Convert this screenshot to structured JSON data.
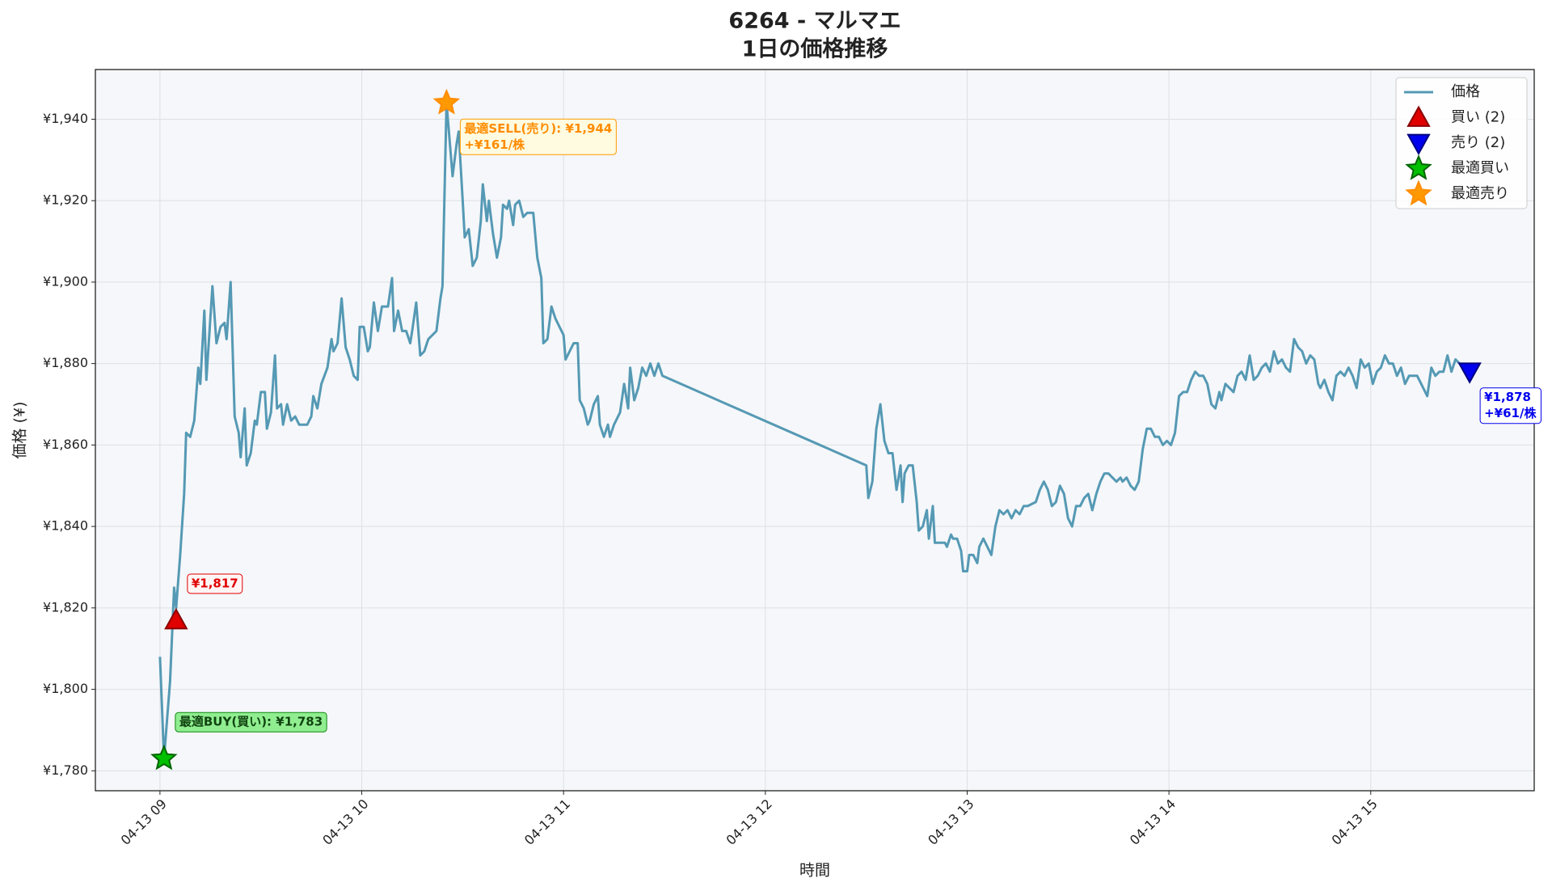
{
  "chart_data": {
    "type": "line",
    "title": "6264 - マルマエ",
    "subtitle": "1日の価格推移",
    "xlabel": "時間",
    "ylabel": "価格 (¥)",
    "xlim": [
      8.68,
      15.81
    ],
    "ylim": [
      1775.1,
      1952.2
    ],
    "xticks": [
      {
        "value": 9,
        "label": "04-13 09"
      },
      {
        "value": 10,
        "label": "04-13 10"
      },
      {
        "value": 11,
        "label": "04-13 11"
      },
      {
        "value": 12,
        "label": "04-13 12"
      },
      {
        "value": 13,
        "label": "04-13 13"
      },
      {
        "value": 14,
        "label": "04-13 14"
      },
      {
        "value": 15,
        "label": "04-13 15"
      }
    ],
    "yticks": [
      {
        "value": 1780,
        "label": "¥1,780"
      },
      {
        "value": 1800,
        "label": "¥1,800"
      },
      {
        "value": 1820,
        "label": "¥1,820"
      },
      {
        "value": 1840,
        "label": "¥1,840"
      },
      {
        "value": 1860,
        "label": "¥1,860"
      },
      {
        "value": 1880,
        "label": "¥1,880"
      },
      {
        "value": 1900,
        "label": "¥1,900"
      },
      {
        "value": 1920,
        "label": "¥1,920"
      },
      {
        "value": 1940,
        "label": "¥1,940"
      }
    ],
    "grid": true,
    "legend": "upper right",
    "series": [
      {
        "name": "価格",
        "color": "#5599b4",
        "x": [
          9.0,
          9.02,
          9.05,
          9.07,
          9.08,
          9.1,
          9.12,
          9.13,
          9.15,
          9.17,
          9.19,
          9.2,
          9.22,
          9.23,
          9.26,
          9.28,
          9.3,
          9.32,
          9.33,
          9.35,
          9.37,
          9.39,
          9.4,
          9.42,
          9.43,
          9.45,
          9.47,
          9.48,
          9.5,
          9.52,
          9.53,
          9.55,
          9.57,
          9.58,
          9.6,
          9.61,
          9.63,
          9.65,
          9.67,
          9.69,
          9.73,
          9.75,
          9.76,
          9.78,
          9.8,
          9.83,
          9.85,
          9.86,
          9.88,
          9.9,
          9.92,
          9.94,
          9.96,
          9.98,
          9.99,
          10.01,
          10.03,
          10.04,
          10.06,
          10.08,
          10.1,
          10.13,
          10.15,
          10.16,
          10.18,
          10.2,
          10.22,
          10.24,
          10.25,
          10.27,
          10.29,
          10.31,
          10.33,
          10.35,
          10.37,
          10.39,
          10.4,
          10.42,
          10.45,
          10.47,
          10.48,
          10.5,
          10.51,
          10.53,
          10.55,
          10.57,
          10.59,
          10.6,
          10.62,
          10.63,
          10.65,
          10.67,
          10.69,
          10.7,
          10.72,
          10.73,
          10.75,
          10.76,
          10.78,
          10.8,
          10.82,
          10.85,
          10.87,
          10.89,
          10.9,
          10.92,
          10.94,
          10.96,
          10.98,
          11.0,
          11.01,
          11.03,
          11.05,
          11.07,
          11.08,
          11.1,
          11.12,
          11.13,
          11.15,
          11.17,
          11.18,
          11.2,
          11.22,
          11.23,
          11.25,
          11.27,
          11.28,
          11.3,
          11.32,
          11.33,
          11.35,
          11.37,
          11.39,
          11.41,
          11.43,
          11.45,
          11.47,
          11.49,
          12.5,
          12.51,
          12.53,
          12.55,
          12.57,
          12.59,
          12.61,
          12.63,
          12.65,
          12.67,
          12.68,
          12.69,
          12.71,
          12.73,
          12.75,
          12.76,
          12.78,
          12.8,
          12.81,
          12.83,
          12.84,
          12.87,
          12.89,
          12.9,
          12.92,
          12.93,
          12.95,
          12.97,
          12.98,
          13.0,
          13.01,
          13.03,
          13.05,
          13.06,
          13.08,
          13.1,
          13.12,
          13.14,
          13.16,
          13.18,
          13.2,
          13.22,
          13.24,
          13.26,
          13.28,
          13.3,
          13.34,
          13.36,
          13.38,
          13.4,
          13.42,
          13.44,
          13.46,
          13.48,
          13.5,
          13.52,
          13.54,
          13.56,
          13.58,
          13.6,
          13.62,
          13.64,
          13.66,
          13.68,
          13.7,
          13.72,
          13.74,
          13.76,
          13.77,
          13.79,
          13.81,
          13.83,
          13.85,
          13.87,
          13.89,
          13.91,
          13.93,
          13.95,
          13.97,
          13.99,
          14.01,
          14.03,
          14.05,
          14.07,
          14.09,
          14.11,
          14.13,
          14.15,
          14.17,
          14.19,
          14.21,
          14.23,
          14.25,
          14.26,
          14.28,
          14.3,
          14.32,
          14.34,
          14.36,
          14.38,
          14.4,
          14.42,
          14.44,
          14.46,
          14.48,
          14.5,
          14.52,
          14.54,
          14.56,
          14.58,
          14.6,
          14.62,
          14.64,
          14.66,
          14.68,
          14.7,
          14.72,
          14.74,
          14.75,
          14.77,
          14.79,
          14.81,
          14.83,
          14.85,
          14.87,
          14.89,
          14.91,
          14.93,
          14.95,
          14.97,
          14.99,
          15.01,
          15.03,
          15.05,
          15.07,
          15.09,
          15.11,
          15.13,
          15.15,
          15.17,
          15.19,
          15.21,
          15.23,
          15.25,
          15.26,
          15.28,
          15.3,
          15.32,
          15.34,
          15.36,
          15.38,
          15.4,
          15.42,
          15.44
        ],
        "values": [
          1808,
          1783,
          1802,
          1825,
          1820,
          1833,
          1848,
          1863,
          1862,
          1866,
          1879,
          1875,
          1893,
          1876,
          1899,
          1885,
          1889,
          1890,
          1886,
          1900,
          1867,
          1863,
          1857,
          1869,
          1855,
          1858,
          1866,
          1865,
          1873,
          1873,
          1864,
          1868,
          1882,
          1869,
          1870,
          1865,
          1870,
          1866,
          1867,
          1865,
          1865,
          1867,
          1872,
          1869,
          1875,
          1879,
          1886,
          1883,
          1885,
          1896,
          1884,
          1881,
          1877,
          1876,
          1889,
          1889,
          1883,
          1884,
          1895,
          1888,
          1894,
          1894,
          1901,
          1888,
          1893,
          1888,
          1888,
          1885,
          1888,
          1895,
          1882,
          1883,
          1886,
          1887,
          1888,
          1896,
          1899,
          1944,
          1926,
          1934,
          1937,
          1920,
          1911,
          1913,
          1904,
          1906,
          1915,
          1924,
          1915,
          1920,
          1912,
          1906,
          1911,
          1919,
          1918,
          1920,
          1914,
          1919,
          1920,
          1916,
          1917,
          1917,
          1906,
          1901,
          1885,
          1886,
          1894,
          1891,
          1889,
          1887,
          1881,
          1883,
          1885,
          1885,
          1871,
          1869,
          1865,
          1866,
          1870,
          1872,
          1865,
          1862,
          1865,
          1862,
          1865,
          1867,
          1868,
          1875,
          1869,
          1879,
          1871,
          1874,
          1879,
          1877,
          1880,
          1877,
          1880,
          1877,
          1855,
          1847,
          1851,
          1864,
          1870,
          1861,
          1858,
          1858,
          1849,
          1855,
          1846,
          1853,
          1855,
          1855,
          1846,
          1839,
          1840,
          1844,
          1837,
          1845,
          1836,
          1836,
          1836,
          1835,
          1838,
          1837,
          1837,
          1834,
          1829,
          1829,
          1833,
          1833,
          1831,
          1835,
          1837,
          1835,
          1833,
          1840,
          1844,
          1843,
          1844,
          1842,
          1844,
          1843,
          1845,
          1845,
          1846,
          1849,
          1851,
          1849,
          1845,
          1846,
          1850,
          1848,
          1842,
          1840,
          1845,
          1845,
          1847,
          1848,
          1844,
          1848,
          1851,
          1853,
          1853,
          1852,
          1851,
          1852,
          1851,
          1852,
          1850,
          1849,
          1851,
          1859,
          1864,
          1864,
          1862,
          1862,
          1860,
          1861,
          1860,
          1863,
          1872,
          1873,
          1873,
          1876,
          1878,
          1877,
          1877,
          1875,
          1870,
          1869,
          1873,
          1871,
          1875,
          1874,
          1873,
          1877,
          1878,
          1876,
          1882,
          1876,
          1877,
          1879,
          1880,
          1878,
          1883,
          1880,
          1881,
          1879,
          1878,
          1886,
          1884,
          1883,
          1880,
          1882,
          1881,
          1875,
          1874,
          1876,
          1873,
          1871,
          1877,
          1878,
          1877,
          1879,
          1877,
          1874,
          1881,
          1879,
          1880,
          1875,
          1878,
          1879,
          1882,
          1880,
          1880,
          1877,
          1879,
          1875,
          1877,
          1877,
          1877,
          1875,
          1874,
          1872,
          1879,
          1877,
          1878,
          1878,
          1882,
          1878,
          1881,
          1880
        ]
      }
    ],
    "markers": [
      {
        "name": "買い (2)",
        "shape": "triangle-up",
        "color": "#e00000",
        "x": [
          9.08
        ],
        "values": [
          1817
        ],
        "value_labels": [
          "¥1,817"
        ]
      },
      {
        "name": "売り (2)",
        "shape": "triangle-down",
        "color": "#0000ee",
        "x": [
          15.49
        ],
        "values": [
          1878
        ],
        "value_labels": [
          "¥1,878"
        ],
        "annotations": [
          "+¥61/株"
        ]
      },
      {
        "name": "最適買い",
        "shape": "star",
        "color": "#00c000",
        "x": [
          9.02
        ],
        "values": [
          1783
        ],
        "value_labels": [
          "最適BUY(買い): ¥1,783"
        ]
      },
      {
        "name": "最適売り",
        "shape": "star",
        "color": "#ff9900",
        "x": [
          10.42
        ],
        "values": [
          1944
        ],
        "value_labels": [
          "最適SELL(売り): ¥1,944"
        ],
        "annotations": [
          "+¥161/株"
        ]
      }
    ]
  }
}
